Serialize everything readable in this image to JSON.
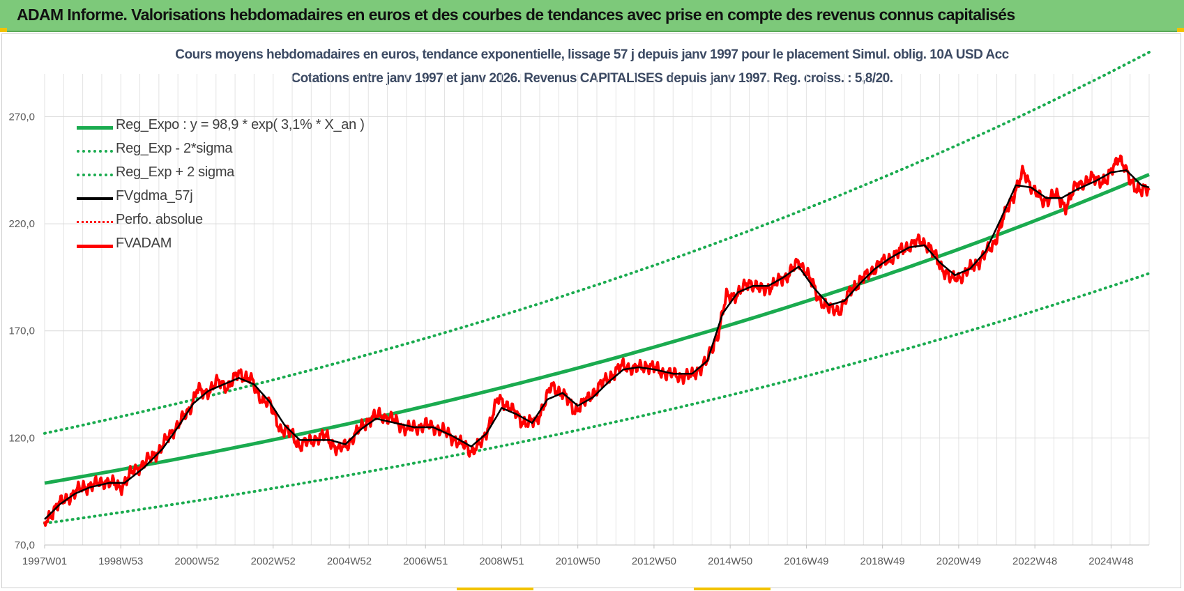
{
  "banner": {
    "title": "ADAM Informe. Valorisations hebdomadaires en euros et des courbes de tendances avec prise en compte des revenus connus capitalisés",
    "background_color": "#7dc97a"
  },
  "chart_data": {
    "type": "line",
    "title_line1": "Cours moyens hebdomadaires en euros, tendance exponentielle, lissage 57 j depuis janv 1997 pour le placement Simul. oblig. 10A USD Acc",
    "title_line2": "Cotations entre janv 1997 et janv 2026. Revenus CAPITALISES depuis janv 1997. Reg. croiss. : 5,8/20.",
    "x_range": [
      1997.0,
      2026.0
    ],
    "ylim": [
      70,
      290
    ],
    "y_ticks": [
      "70,0",
      "120,0",
      "170,0",
      "220,0",
      "270,0"
    ],
    "y_tick_values": [
      70,
      120,
      170,
      220,
      270
    ],
    "x_ticks": [
      "1997W01",
      "1998W53",
      "2000W52",
      "2002W52",
      "2004W52",
      "2006W51",
      "2008W51",
      "2010W50",
      "2012W50",
      "2014W50",
      "2016W49",
      "2018W49",
      "2020W49",
      "2022W48",
      "2024W48"
    ],
    "x_tick_years": [
      1997.0,
      1999.0,
      2001.0,
      2003.0,
      2005.0,
      2007.0,
      2009.0,
      2011.0,
      2013.0,
      2015.0,
      2017.0,
      2019.0,
      2021.0,
      2023.0,
      2025.0
    ],
    "grid": true,
    "legend_position": "top-left",
    "regression": {
      "a": 98.9,
      "rate": 0.031,
      "lower_factor": 0.81,
      "upper_factor": 1.235
    },
    "series": [
      {
        "name": "Reg_Expo : y = 98,9 * exp( 3,1% *  X_an )",
        "color": "#1aab4f",
        "style": "solid-thick"
      },
      {
        "name": "Reg_Exp - 2*sigma",
        "color": "#1aab4f",
        "style": "dotted"
      },
      {
        "name": "Reg_Exp + 2 sigma",
        "color": "#1aab4f",
        "style": "dotted"
      },
      {
        "name": "FVgdma_57j",
        "color": "#000000",
        "style": "solid"
      },
      {
        "name": "Perfo. absolue",
        "color": "#ff0000",
        "style": "dotted"
      },
      {
        "name": "FVADAM",
        "color": "#ff0000",
        "style": "solid-thick"
      }
    ],
    "fvadam_points": [
      [
        1997.0,
        80
      ],
      [
        1997.3,
        88
      ],
      [
        1997.6,
        92
      ],
      [
        1998.0,
        97
      ],
      [
        1998.3,
        98
      ],
      [
        1998.6,
        100
      ],
      [
        1999.0,
        97
      ],
      [
        1999.3,
        104
      ],
      [
        1999.6,
        108
      ],
      [
        2000.0,
        114
      ],
      [
        2000.4,
        124
      ],
      [
        2000.8,
        133
      ],
      [
        2001.0,
        143
      ],
      [
        2001.2,
        140
      ],
      [
        2001.5,
        146
      ],
      [
        2001.8,
        144
      ],
      [
        2002.1,
        150
      ],
      [
        2002.4,
        148
      ],
      [
        2002.6,
        140
      ],
      [
        2002.9,
        136
      ],
      [
        2003.2,
        124
      ],
      [
        2003.5,
        122
      ],
      [
        2003.7,
        116
      ],
      [
        2004.0,
        119
      ],
      [
        2004.4,
        121
      ],
      [
        2004.7,
        114
      ],
      [
        2005.0,
        118
      ],
      [
        2005.4,
        127
      ],
      [
        2005.8,
        131
      ],
      [
        2006.2,
        128
      ],
      [
        2006.5,
        124
      ],
      [
        2007.0,
        126
      ],
      [
        2007.4,
        124
      ],
      [
        2007.8,
        119
      ],
      [
        2008.2,
        114
      ],
      [
        2008.5,
        118
      ],
      [
        2008.9,
        138
      ],
      [
        2009.2,
        135
      ],
      [
        2009.5,
        128
      ],
      [
        2009.9,
        127
      ],
      [
        2010.3,
        144
      ],
      [
        2010.6,
        141
      ],
      [
        2010.9,
        133
      ],
      [
        2011.2,
        137
      ],
      [
        2011.5,
        143
      ],
      [
        2011.8,
        148
      ],
      [
        2012.2,
        154
      ],
      [
        2012.5,
        152
      ],
      [
        2012.8,
        154
      ],
      [
        2013.2,
        151
      ],
      [
        2013.6,
        149
      ],
      [
        2014.0,
        149
      ],
      [
        2014.4,
        156
      ],
      [
        2014.7,
        170
      ],
      [
        2014.9,
        186
      ],
      [
        2015.2,
        187
      ],
      [
        2015.5,
        193
      ],
      [
        2015.8,
        189
      ],
      [
        2016.1,
        191
      ],
      [
        2016.5,
        196
      ],
      [
        2016.8,
        202
      ],
      [
        2017.0,
        198
      ],
      [
        2017.3,
        186
      ],
      [
        2017.6,
        180
      ],
      [
        2017.9,
        180
      ],
      [
        2018.2,
        190
      ],
      [
        2018.6,
        196
      ],
      [
        2018.9,
        201
      ],
      [
        2019.3,
        205
      ],
      [
        2019.7,
        210
      ],
      [
        2020.0,
        212
      ],
      [
        2020.2,
        210
      ],
      [
        2020.5,
        201
      ],
      [
        2020.8,
        194
      ],
      [
        2021.1,
        196
      ],
      [
        2021.5,
        202
      ],
      [
        2021.9,
        210
      ],
      [
        2022.3,
        228
      ],
      [
        2022.7,
        244
      ],
      [
        2022.9,
        238
      ],
      [
        2023.2,
        230
      ],
      [
        2023.5,
        234
      ],
      [
        2023.8,
        228
      ],
      [
        2024.1,
        238
      ],
      [
        2024.5,
        241
      ],
      [
        2024.9,
        240
      ],
      [
        2025.2,
        252
      ],
      [
        2025.5,
        240
      ],
      [
        2025.8,
        235
      ],
      [
        2026.0,
        236
      ]
    ],
    "fvgdma_points": [
      [
        1997.0,
        82
      ],
      [
        1997.4,
        89
      ],
      [
        1997.8,
        94
      ],
      [
        1998.2,
        97
      ],
      [
        1998.7,
        99
      ],
      [
        1999.1,
        99
      ],
      [
        1999.6,
        106
      ],
      [
        2000.1,
        115
      ],
      [
        2000.5,
        125
      ],
      [
        2000.9,
        136
      ],
      [
        2001.3,
        142
      ],
      [
        2001.7,
        145
      ],
      [
        2002.1,
        148
      ],
      [
        2002.5,
        145
      ],
      [
        2002.9,
        137
      ],
      [
        2003.3,
        126
      ],
      [
        2003.7,
        119
      ],
      [
        2004.1,
        119
      ],
      [
        2004.5,
        119
      ],
      [
        2004.9,
        117
      ],
      [
        2005.3,
        124
      ],
      [
        2005.7,
        129
      ],
      [
        2006.2,
        127
      ],
      [
        2006.7,
        125
      ],
      [
        2007.2,
        125
      ],
      [
        2007.7,
        121
      ],
      [
        2008.2,
        116
      ],
      [
        2008.6,
        122
      ],
      [
        2009.0,
        134
      ],
      [
        2009.4,
        131
      ],
      [
        2009.8,
        127
      ],
      [
        2010.2,
        138
      ],
      [
        2010.6,
        141
      ],
      [
        2011.0,
        135
      ],
      [
        2011.4,
        139
      ],
      [
        2011.8,
        146
      ],
      [
        2012.2,
        152
      ],
      [
        2012.6,
        153
      ],
      [
        2013.0,
        152
      ],
      [
        2013.5,
        150
      ],
      [
        2014.0,
        150
      ],
      [
        2014.4,
        156
      ],
      [
        2014.8,
        178
      ],
      [
        2015.2,
        188
      ],
      [
        2015.6,
        191
      ],
      [
        2016.0,
        191
      ],
      [
        2016.4,
        195
      ],
      [
        2016.8,
        200
      ],
      [
        2017.2,
        190
      ],
      [
        2017.6,
        182
      ],
      [
        2018.0,
        184
      ],
      [
        2018.4,
        192
      ],
      [
        2018.8,
        199
      ],
      [
        2019.2,
        204
      ],
      [
        2019.7,
        209
      ],
      [
        2020.1,
        210
      ],
      [
        2020.5,
        202
      ],
      [
        2020.9,
        196
      ],
      [
        2021.3,
        199
      ],
      [
        2021.7,
        207
      ],
      [
        2022.1,
        222
      ],
      [
        2022.5,
        238
      ],
      [
        2022.9,
        237
      ],
      [
        2023.3,
        232
      ],
      [
        2023.7,
        232
      ],
      [
        2024.1,
        236
      ],
      [
        2024.6,
        240
      ],
      [
        2025.0,
        244
      ],
      [
        2025.4,
        245
      ],
      [
        2025.8,
        238
      ],
      [
        2026.0,
        237
      ]
    ]
  }
}
